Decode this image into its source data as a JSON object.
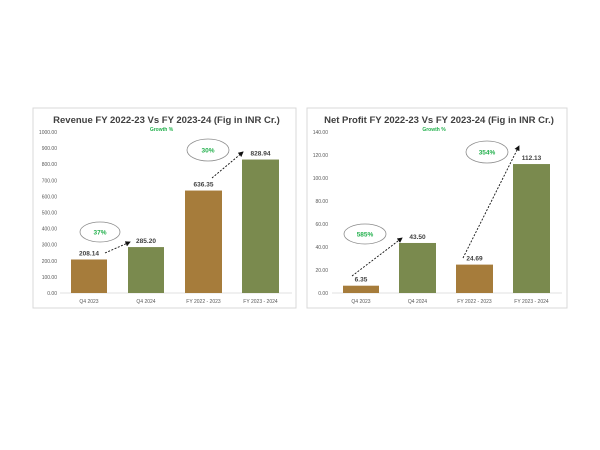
{
  "chart_data": [
    {
      "type": "bar",
      "title": "Revenue FY 2022-23 Vs FY 2023-24 (Fig in INR Cr.)",
      "subtitle": "Growth %",
      "categories": [
        "Q4 2023",
        "Q4 2024",
        "FY 2022 - 2023",
        "FY 2023 - 2024"
      ],
      "values": [
        208.14,
        285.2,
        636.35,
        828.94
      ],
      "data_labels": [
        "208.14",
        "285.20",
        "636.35",
        "828.94"
      ],
      "ylim": [
        0,
        1000
      ],
      "yticks": [
        "0.00",
        "100.00",
        "200.00",
        "300.00",
        "400.00",
        "500.00",
        "600.00",
        "700.00",
        "800.00",
        "900.00",
        "1000.00"
      ],
      "annotations": [
        {
          "text": "37%",
          "from": 0,
          "to": 1
        },
        {
          "text": "30%",
          "from": 2,
          "to": 3
        }
      ],
      "bar_colors": [
        "#A67C3B",
        "#7A8A4E",
        "#A67C3B",
        "#7A8A4E"
      ],
      "grid": false
    },
    {
      "type": "bar",
      "title": "Net Profit FY 2022-23 Vs FY 2023-24 (Fig in INR Cr.)",
      "subtitle": "Growth %",
      "categories": [
        "Q4 2023",
        "Q4 2024",
        "FY 2022 - 2023",
        "FY 2023 - 2024"
      ],
      "values": [
        6.35,
        43.5,
        24.69,
        112.13
      ],
      "data_labels": [
        "6.35",
        "43.50",
        "24.69",
        "112.13"
      ],
      "ylim": [
        0,
        140
      ],
      "yticks": [
        "0.00",
        "20.00",
        "40.00",
        "60.00",
        "80.00",
        "100.00",
        "120.00",
        "140.00"
      ],
      "annotations": [
        {
          "text": "585%",
          "from": 0,
          "to": 1
        },
        {
          "text": "354%",
          "from": 2,
          "to": 3
        }
      ],
      "bar_colors": [
        "#A67C3B",
        "#7A8A4E",
        "#A67C3B",
        "#7A8A4E"
      ],
      "grid": false
    }
  ],
  "colors": {
    "growth_text": "#22B04C"
  }
}
